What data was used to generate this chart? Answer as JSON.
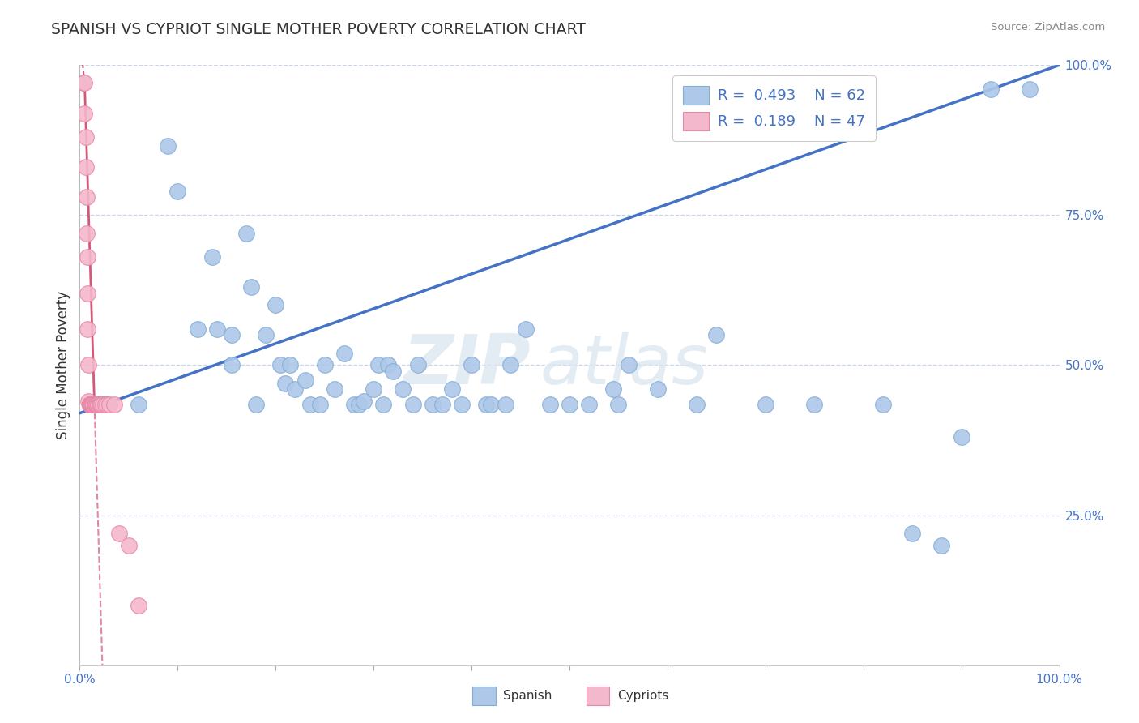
{
  "title": "SPANISH VS CYPRIOT SINGLE MOTHER POVERTY CORRELATION CHART",
  "source": "Source: ZipAtlas.com",
  "ylabel": "Single Mother Poverty",
  "xlim": [
    0.0,
    1.0
  ],
  "ylim": [
    0.0,
    1.0
  ],
  "ytick_right_labels": [
    "25.0%",
    "50.0%",
    "75.0%",
    "100.0%"
  ],
  "ytick_right_values": [
    0.25,
    0.5,
    0.75,
    1.0
  ],
  "spanish_R": 0.493,
  "spanish_N": 62,
  "cypriot_R": 0.189,
  "cypriot_N": 47,
  "spanish_color": "#adc8e8",
  "spanish_edge": "#85aed6",
  "spanish_line_color": "#4472c4",
  "cypriot_color": "#f4b8cc",
  "cypriot_edge": "#e888a8",
  "cypriot_line_color": "#d45878",
  "background_color": "#ffffff",
  "grid_color": "#c8d4e8",
  "title_color": "#333333",
  "legend_text_color": "#4472c4",
  "watermark_zip": "ZIP",
  "watermark_atlas": "atlas",
  "spanish_x": [
    0.025,
    0.06,
    0.09,
    0.1,
    0.12,
    0.135,
    0.14,
    0.155,
    0.155,
    0.17,
    0.175,
    0.18,
    0.19,
    0.2,
    0.205,
    0.21,
    0.215,
    0.22,
    0.23,
    0.235,
    0.245,
    0.25,
    0.26,
    0.27,
    0.28,
    0.285,
    0.29,
    0.3,
    0.305,
    0.31,
    0.315,
    0.32,
    0.33,
    0.34,
    0.345,
    0.36,
    0.37,
    0.38,
    0.39,
    0.4,
    0.415,
    0.42,
    0.435,
    0.44,
    0.455,
    0.48,
    0.5,
    0.52,
    0.545,
    0.55,
    0.56,
    0.59,
    0.63,
    0.65,
    0.7,
    0.75,
    0.82,
    0.85,
    0.88,
    0.9,
    0.93,
    0.97
  ],
  "spanish_y": [
    0.435,
    0.435,
    0.865,
    0.79,
    0.56,
    0.68,
    0.56,
    0.55,
    0.5,
    0.72,
    0.63,
    0.435,
    0.55,
    0.6,
    0.5,
    0.47,
    0.5,
    0.46,
    0.475,
    0.435,
    0.435,
    0.5,
    0.46,
    0.52,
    0.435,
    0.435,
    0.44,
    0.46,
    0.5,
    0.435,
    0.5,
    0.49,
    0.46,
    0.435,
    0.5,
    0.435,
    0.435,
    0.46,
    0.435,
    0.5,
    0.435,
    0.435,
    0.435,
    0.5,
    0.56,
    0.435,
    0.435,
    0.435,
    0.46,
    0.435,
    0.5,
    0.46,
    0.435,
    0.55,
    0.435,
    0.435,
    0.435,
    0.22,
    0.2,
    0.38,
    0.96,
    0.96
  ],
  "cypriot_x": [
    0.004,
    0.005,
    0.005,
    0.006,
    0.006,
    0.007,
    0.007,
    0.008,
    0.008,
    0.008,
    0.009,
    0.009,
    0.01,
    0.01,
    0.01,
    0.01,
    0.01,
    0.011,
    0.011,
    0.011,
    0.012,
    0.012,
    0.012,
    0.012,
    0.013,
    0.013,
    0.013,
    0.014,
    0.014,
    0.015,
    0.015,
    0.016,
    0.016,
    0.017,
    0.018,
    0.019,
    0.02,
    0.021,
    0.022,
    0.024,
    0.026,
    0.028,
    0.03,
    0.035,
    0.04,
    0.05,
    0.06
  ],
  "cypriot_y": [
    0.97,
    0.97,
    0.92,
    0.88,
    0.83,
    0.78,
    0.72,
    0.68,
    0.62,
    0.56,
    0.5,
    0.44,
    0.435,
    0.435,
    0.435,
    0.435,
    0.435,
    0.435,
    0.435,
    0.435,
    0.435,
    0.435,
    0.435,
    0.435,
    0.435,
    0.435,
    0.435,
    0.435,
    0.435,
    0.435,
    0.435,
    0.435,
    0.435,
    0.435,
    0.435,
    0.435,
    0.435,
    0.435,
    0.435,
    0.435,
    0.435,
    0.435,
    0.435,
    0.435,
    0.22,
    0.2,
    0.1
  ]
}
